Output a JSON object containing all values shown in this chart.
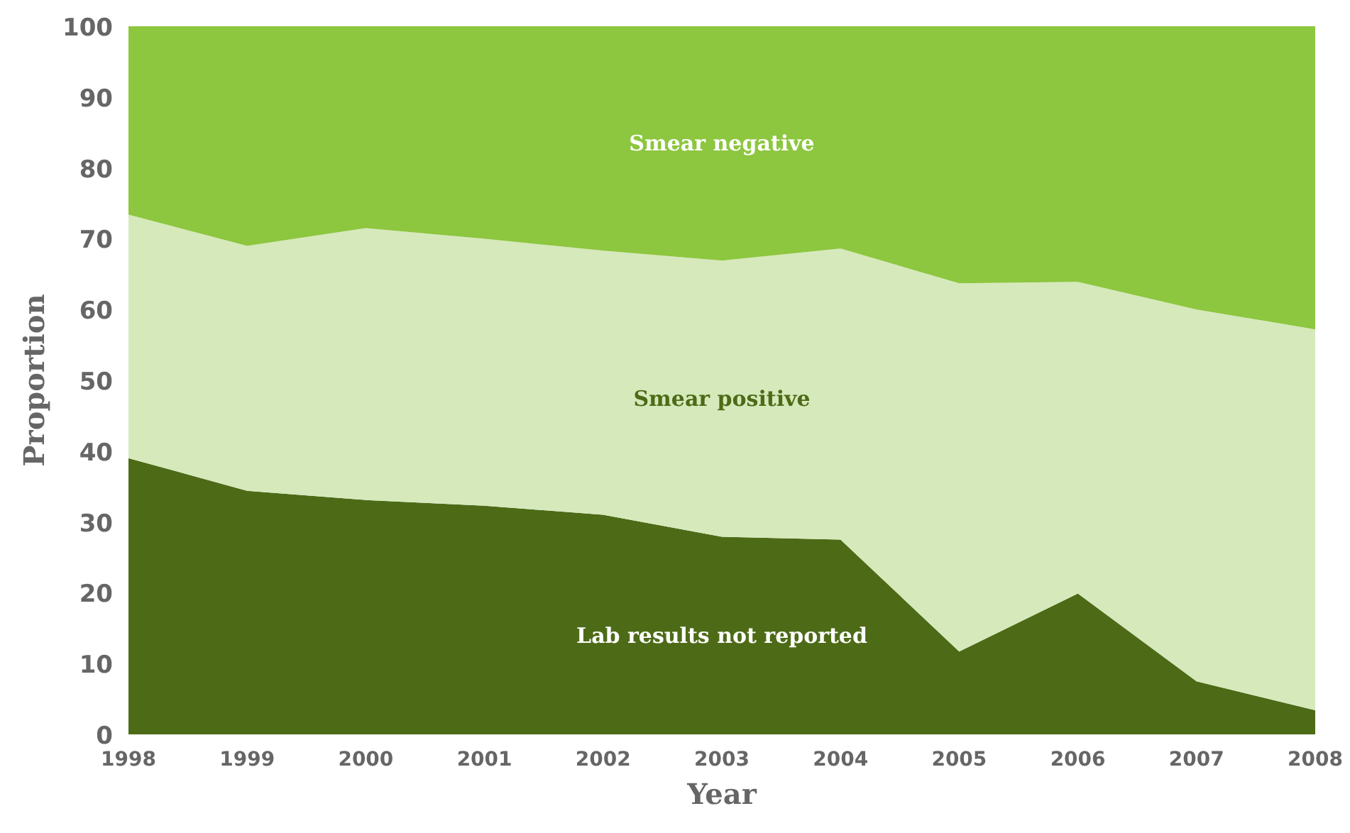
{
  "chart_data": {
    "type": "area",
    "stacked": true,
    "xlabel": "Year",
    "ylabel": "Proportion",
    "x": [
      1998,
      1999,
      2000,
      2001,
      2002,
      2003,
      2004,
      2005,
      2006,
      2007,
      2008
    ],
    "xlim": [
      1998,
      2008
    ],
    "xticks": [
      1998,
      1999,
      2000,
      2001,
      2002,
      2003,
      2004,
      2005,
      2006,
      2007,
      2008
    ],
    "ylim": [
      0,
      100
    ],
    "yticks": [
      0,
      10,
      20,
      30,
      40,
      50,
      60,
      70,
      80,
      90,
      100
    ],
    "grid": false,
    "series": [
      {
        "name": "Lab results not reported",
        "color": "#4d6b17",
        "values": [
          39.0,
          34.4,
          33.1,
          32.3,
          31.0,
          27.9,
          27.5,
          11.7,
          19.9,
          7.5,
          3.4
        ]
      },
      {
        "name": "Smear positive",
        "color": "#d6e9bb",
        "values": [
          34.4,
          34.6,
          38.4,
          37.7,
          37.3,
          39.0,
          41.1,
          52.0,
          44.0,
          52.5,
          53.8
        ]
      },
      {
        "name": "Smear negative",
        "color": "#8dc63f",
        "values": [
          26.6,
          31.0,
          28.5,
          30.0,
          31.7,
          33.1,
          31.4,
          36.3,
          36.1,
          40.0,
          42.8
        ]
      }
    ]
  }
}
